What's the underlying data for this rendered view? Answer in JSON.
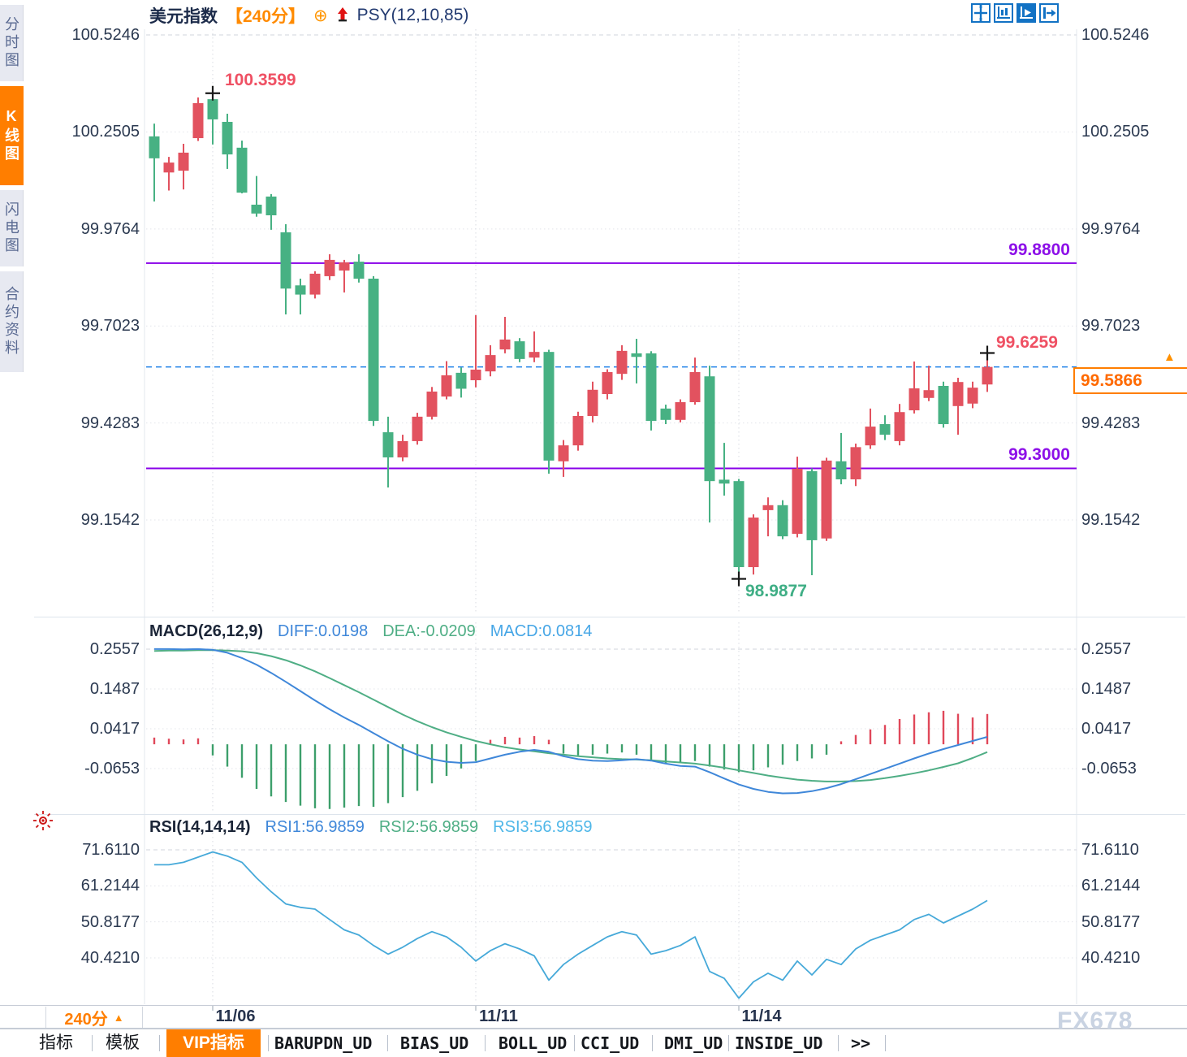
{
  "header": {
    "symbol": "美元指数",
    "period_tag": "【240分】",
    "add_icon_glyph": "⊕",
    "overlay_indicator": "PSY(12,10,85)"
  },
  "sidebar_tabs": [
    {
      "label": "分时图",
      "active": false
    },
    {
      "label": "K线图",
      "active": true
    },
    {
      "label": "闪电图",
      "active": false
    },
    {
      "label": "合约资料",
      "active": false
    }
  ],
  "toolbar_icons": [
    {
      "name": "crosshair-move-icon",
      "active": false
    },
    {
      "name": "axis-scale-icon",
      "active": false
    },
    {
      "name": "axis-play-icon",
      "active": true
    },
    {
      "name": "export-chart-icon",
      "active": false
    }
  ],
  "price_panel": {
    "y_labels": [
      "100.5246",
      "100.2505",
      "99.9764",
      "99.7023",
      "99.4283",
      "99.1542"
    ],
    "hline_upper_label": "99.8800",
    "hline_lower_label": "99.3000",
    "high_label": "100.3599",
    "low_label": "98.9877",
    "last_high_label": "99.6259",
    "current_price_label": "99.5866",
    "current_arrow": "▲"
  },
  "macd_panel": {
    "title": "MACD(26,12,9)",
    "diff_label": "DIFF:0.0198",
    "dea_label": "DEA:-0.0209",
    "macd_label": "MACD:0.0814",
    "y_labels": [
      "0.2557",
      "0.1487",
      "0.0417",
      "-0.0653"
    ]
  },
  "rsi_panel": {
    "title": "RSI(14,14,14)",
    "rsi1_label": "RSI1:56.9859",
    "rsi2_label": "RSI2:56.9859",
    "rsi3_label": "RSI3:56.9859",
    "y_labels": [
      "71.6110",
      "61.2144",
      "50.8177",
      "40.4210"
    ]
  },
  "timeline": {
    "period_label": "240分",
    "period_arrow": "▲",
    "dates": [
      "11/06",
      "11/11",
      "11/14"
    ]
  },
  "bottom_tabs": [
    {
      "label": "指标",
      "active": false,
      "kind": "cjk"
    },
    {
      "label": "模板",
      "active": false,
      "kind": "cjk"
    },
    {
      "label": "VIP指标",
      "active": true,
      "kind": "chip"
    },
    {
      "label": "BARUPDN_UD",
      "active": false,
      "kind": "mono"
    },
    {
      "label": "BIAS_UD",
      "active": false,
      "kind": "mono"
    },
    {
      "label": "BOLL_UD",
      "active": false,
      "kind": "mono"
    },
    {
      "label": "CCI_UD",
      "active": false,
      "kind": "mono"
    },
    {
      "label": "DMI_UD",
      "active": false,
      "kind": "mono"
    },
    {
      "label": "INSIDE_UD",
      "active": false,
      "kind": "mono"
    },
    {
      "label": ">>",
      "active": false,
      "kind": "mono"
    }
  ],
  "watermark": "FX678",
  "colors": {
    "up": "#e2525f",
    "down": "#47b183",
    "hist_up": "#e0485a",
    "hist_down": "#3d9f6b",
    "purple_line": "#8800e8",
    "purple_text": "#8d10e8",
    "dashed_blue": "#1e80e8",
    "accent_orange": "#ff7e00",
    "diff_blue": "#3f87d9",
    "dea_green": "#4fae85",
    "rsi_line": "#46a9d9",
    "axis_text": "#2b3950"
  },
  "chart_data": [
    {
      "type": "candlestick",
      "title": "美元指数 240分K线",
      "y_ticks": [
        100.5246,
        100.2505,
        99.9764,
        99.7023,
        99.4283,
        99.1542
      ],
      "x_dates": [
        "11/06",
        "11/11",
        "11/14"
      ],
      "date_candle_index": [
        4,
        22,
        40
      ],
      "hlines": [
        {
          "label": "99.8800",
          "value": 99.88
        },
        {
          "label": "99.3000",
          "value": 99.3
        }
      ],
      "current": {
        "label": "99.5866",
        "value": 99.5866
      },
      "annotations": [
        {
          "label": "100.3599",
          "value": 100.3599,
          "candle": 4,
          "pos": "high"
        },
        {
          "label": "98.9877",
          "value": 98.9877,
          "candle": 40,
          "pos": "low"
        },
        {
          "label": "99.6259",
          "value": 99.6259,
          "candle": 57,
          "pos": "high"
        }
      ],
      "ohlc": [
        [
          100.238,
          100.274,
          100.054,
          100.176
        ],
        [
          100.136,
          100.18,
          100.085,
          100.164
        ],
        [
          100.141,
          100.217,
          100.088,
          100.192
        ],
        [
          100.233,
          100.348,
          100.225,
          100.332
        ],
        [
          100.343,
          100.3599,
          100.215,
          100.286
        ],
        [
          100.279,
          100.302,
          100.146,
          100.187
        ],
        [
          100.206,
          100.226,
          100.077,
          100.079
        ],
        [
          100.045,
          100.126,
          100.011,
          100.02
        ],
        [
          100.068,
          100.075,
          99.974,
          100.015
        ],
        [
          99.967,
          99.99,
          99.735,
          99.808
        ],
        [
          99.817,
          99.836,
          99.735,
          99.791
        ],
        [
          99.791,
          99.857,
          99.78,
          99.85
        ],
        [
          99.843,
          99.905,
          99.832,
          99.889
        ],
        [
          99.859,
          99.889,
          99.797,
          99.882
        ],
        [
          99.884,
          99.905,
          99.825,
          99.836
        ],
        [
          99.836,
          99.843,
          99.42,
          99.434
        ],
        [
          99.402,
          99.446,
          99.246,
          99.331
        ],
        [
          99.331,
          99.395,
          99.32,
          99.377
        ],
        [
          99.377,
          99.457,
          99.367,
          99.446
        ],
        [
          99.446,
          99.53,
          99.438,
          99.517
        ],
        [
          99.503,
          99.603,
          99.495,
          99.563
        ],
        [
          99.57,
          99.585,
          99.5,
          99.525
        ],
        [
          99.549,
          99.733,
          99.529,
          99.579
        ],
        [
          99.574,
          99.648,
          99.56,
          99.62
        ],
        [
          99.636,
          99.728,
          99.625,
          99.664
        ],
        [
          99.659,
          99.668,
          99.6,
          99.609
        ],
        [
          99.613,
          99.687,
          99.6,
          99.629
        ],
        [
          99.629,
          99.635,
          99.285,
          99.322
        ],
        [
          99.32,
          99.38,
          99.276,
          99.365
        ],
        [
          99.365,
          99.46,
          99.35,
          99.448
        ],
        [
          99.448,
          99.545,
          99.43,
          99.522
        ],
        [
          99.51,
          99.58,
          99.495,
          99.572
        ],
        [
          99.567,
          99.648,
          99.55,
          99.632
        ],
        [
          99.625,
          99.666,
          99.54,
          99.615
        ],
        [
          99.625,
          99.631,
          99.407,
          99.434
        ],
        [
          99.469,
          99.48,
          99.425,
          99.437
        ],
        [
          99.437,
          99.495,
          99.43,
          99.487
        ],
        [
          99.487,
          99.613,
          99.48,
          99.572
        ],
        [
          99.56,
          99.59,
          99.147,
          99.264
        ],
        [
          99.268,
          99.372,
          99.223,
          99.257
        ],
        [
          99.264,
          99.27,
          98.9877,
          99.021
        ],
        [
          99.021,
          99.17,
          99.0,
          99.161
        ],
        [
          99.182,
          99.218,
          99.108,
          99.196
        ],
        [
          99.196,
          99.21,
          99.1,
          99.108
        ],
        [
          99.115,
          99.333,
          99.105,
          99.299
        ],
        [
          99.292,
          99.3,
          98.998,
          99.097
        ],
        [
          99.102,
          99.33,
          99.095,
          99.322
        ],
        [
          99.32,
          99.4,
          99.255,
          99.269
        ],
        [
          99.269,
          99.37,
          99.25,
          99.36
        ],
        [
          99.365,
          99.469,
          99.355,
          99.418
        ],
        [
          99.425,
          99.45,
          99.38,
          99.395
        ],
        [
          99.377,
          99.482,
          99.365,
          99.459
        ],
        [
          99.464,
          99.602,
          99.455,
          99.526
        ],
        [
          99.499,
          99.59,
          99.49,
          99.521
        ],
        [
          99.533,
          99.545,
          99.415,
          99.425
        ],
        [
          99.476,
          99.556,
          99.395,
          99.544
        ],
        [
          99.483,
          99.545,
          99.47,
          99.528
        ],
        [
          99.537,
          99.6259,
          99.516,
          99.5866
        ]
      ]
    },
    {
      "type": "macd",
      "y_ticks": [
        0.2557,
        0.1487,
        0.0417,
        -0.0653
      ],
      "diff": [
        0.256,
        0.256,
        0.255,
        0.256,
        0.254,
        0.246,
        0.232,
        0.214,
        0.192,
        0.168,
        0.143,
        0.118,
        0.094,
        0.072,
        0.052,
        0.03,
        0.008,
        -0.012,
        -0.028,
        -0.04,
        -0.047,
        -0.05,
        -0.048,
        -0.038,
        -0.028,
        -0.02,
        -0.015,
        -0.02,
        -0.032,
        -0.04,
        -0.044,
        -0.045,
        -0.043,
        -0.04,
        -0.044,
        -0.052,
        -0.058,
        -0.06,
        -0.075,
        -0.092,
        -0.108,
        -0.12,
        -0.128,
        -0.132,
        -0.131,
        -0.126,
        -0.118,
        -0.107,
        -0.094,
        -0.08,
        -0.066,
        -0.052,
        -0.038,
        -0.025,
        -0.013,
        -0.002,
        0.009,
        0.0198
      ],
      "dea": [
        0.251,
        0.252,
        0.252,
        0.253,
        0.253,
        0.252,
        0.25,
        0.245,
        0.237,
        0.226,
        0.212,
        0.196,
        0.178,
        0.159,
        0.14,
        0.12,
        0.1,
        0.08,
        0.062,
        0.046,
        0.032,
        0.02,
        0.009,
        0.0,
        -0.008,
        -0.014,
        -0.019,
        -0.024,
        -0.028,
        -0.032,
        -0.035,
        -0.038,
        -0.04,
        -0.041,
        -0.043,
        -0.046,
        -0.049,
        -0.052,
        -0.057,
        -0.063,
        -0.07,
        -0.077,
        -0.084,
        -0.09,
        -0.095,
        -0.098,
        -0.1,
        -0.1,
        -0.099,
        -0.096,
        -0.091,
        -0.085,
        -0.078,
        -0.07,
        -0.061,
        -0.051,
        -0.037,
        -0.0209
      ],
      "hist": [
        0.018,
        0.015,
        0.013,
        0.016,
        -0.03,
        -0.06,
        -0.09,
        -0.12,
        -0.14,
        -0.155,
        -0.165,
        -0.172,
        -0.174,
        -0.17,
        -0.166,
        -0.168,
        -0.158,
        -0.142,
        -0.125,
        -0.105,
        -0.085,
        -0.065,
        -0.045,
        0.012,
        0.02,
        0.018,
        0.022,
        0.012,
        -0.025,
        -0.03,
        -0.028,
        -0.025,
        -0.022,
        -0.028,
        -0.045,
        -0.052,
        -0.05,
        -0.045,
        -0.06,
        -0.068,
        -0.075,
        -0.07,
        -0.062,
        -0.055,
        -0.045,
        -0.038,
        -0.028,
        0.008,
        0.025,
        0.04,
        0.052,
        0.068,
        0.08,
        0.086,
        0.09,
        0.082,
        0.072,
        0.0814
      ]
    },
    {
      "type": "line",
      "name": "RSI",
      "y_ticks": [
        71.611,
        61.2144,
        50.8177,
        40.421
      ],
      "values": [
        67.3,
        67.3,
        68.0,
        69.5,
        71.0,
        69.8,
        68.0,
        63.5,
        59.5,
        56.0,
        55.0,
        54.5,
        51.5,
        48.5,
        47.0,
        44.0,
        41.5,
        43.5,
        46.0,
        48.0,
        46.5,
        43.5,
        39.5,
        42.5,
        44.5,
        43.0,
        41.0,
        34.0,
        38.5,
        41.5,
        44.0,
        46.5,
        48.0,
        47.0,
        41.5,
        42.5,
        44.0,
        46.5,
        36.5,
        34.5,
        28.8,
        33.5,
        36.0,
        34.0,
        39.5,
        35.5,
        40.0,
        38.5,
        43.0,
        45.5,
        47.0,
        48.5,
        51.5,
        53.0,
        50.5,
        52.5,
        54.5,
        56.9859
      ]
    }
  ]
}
